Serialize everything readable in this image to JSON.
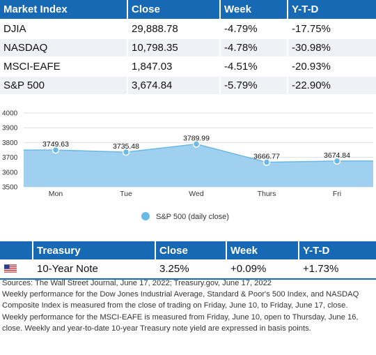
{
  "market_table": {
    "headers": [
      "Market Index",
      "Close",
      "Week",
      "Y-T-D"
    ],
    "rows": [
      [
        "DJIA",
        "29,888.78",
        "-4.79%",
        "-17.75%"
      ],
      [
        "NASDAQ",
        "10,798.35",
        "-4.78%",
        "-30.98%"
      ],
      [
        "MSCI-EAFE",
        "1,847.03",
        "-4.51%",
        "-20.93%"
      ],
      [
        "S&P 500",
        "3,674.84",
        "-5.79%",
        "-22.90%"
      ]
    ]
  },
  "chart_data": {
    "type": "area",
    "categories": [
      "Mon",
      "Tue",
      "Wed",
      "Thurs",
      "Fri"
    ],
    "series": [
      {
        "name": "S&P 500 (daily close)",
        "values": [
          3749.63,
          3735.48,
          3789.99,
          3666.77,
          3674.84
        ],
        "labels": [
          "3749.63",
          "3735.48",
          "3789.99",
          "3666.77",
          "3674.84"
        ],
        "color": "#9fd0ef",
        "marker_color": "#6ab9e6"
      }
    ],
    "y_ticks": [
      "4000",
      "3900",
      "3800",
      "3700",
      "3600",
      "3500"
    ],
    "ylim": [
      3500,
      4000
    ],
    "grid": true,
    "legend_position": "bottom-center"
  },
  "treasury_table": {
    "headers": [
      "Treasury",
      "Close",
      "Week",
      "Y-T-D"
    ],
    "rows": [
      {
        "flag": "us-flag-icon",
        "name": "10-Year Note",
        "close": "3.25%",
        "week": "+0.09%",
        "ytd": "+1.73%"
      }
    ]
  },
  "notes": {
    "sources": "Sources: The Wall Street Journal, June 17, 2022; Treasury.gov, June 17, 2022",
    "body": "Weekly performance for the Dow Jones Industrial Average, Standard & Poor's 500 Index, and NASDAQ Composite Index is measured from the close of trading on Friday, June 10, to Friday, June 17, close. Weekly performance for the MSCI-EAFE is measured from Friday, June 10, open to Thursday, June 16, close. Weekly and year-to-date 10-year Treasury note yield are expressed in basis points."
  },
  "colors": {
    "header_bg": "#1869b3",
    "header_text": "#ffffff",
    "row_alt": "#eef1f5"
  }
}
